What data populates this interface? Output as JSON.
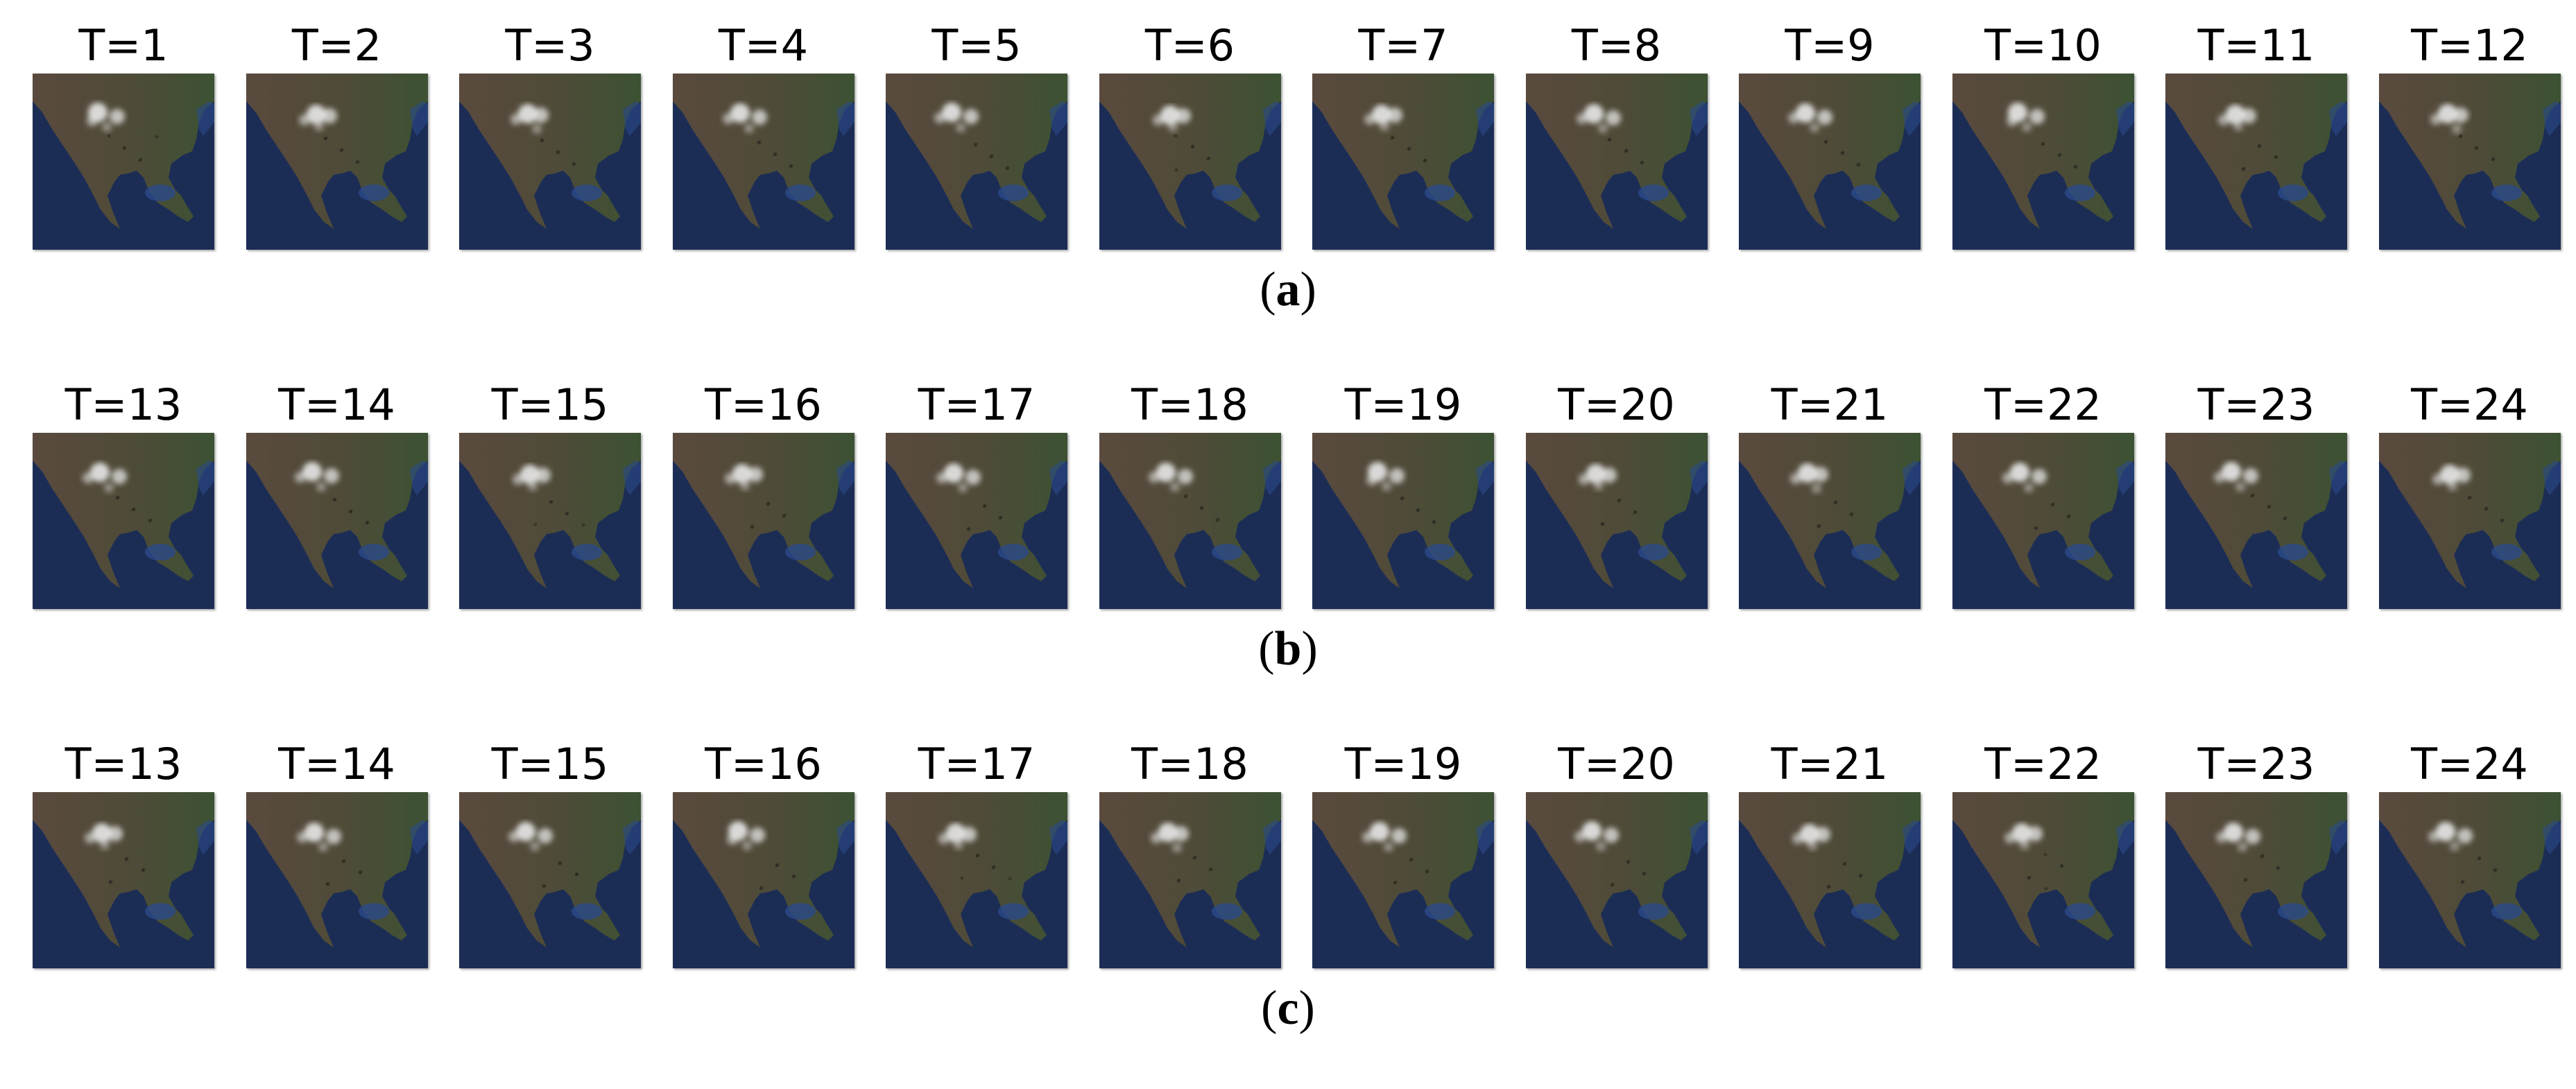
{
  "panels": [
    {
      "id": "a",
      "caption_open": "(",
      "caption_letter": "a",
      "caption_close": ")",
      "frames": [
        "T=1",
        "T=2",
        "T=3",
        "T=4",
        "T=5",
        "T=6",
        "T=7",
        "T=8",
        "T=9",
        "T=10",
        "T=11",
        "T=12"
      ]
    },
    {
      "id": "b",
      "caption_open": "(",
      "caption_letter": "b",
      "caption_close": ")",
      "frames": [
        "T=13",
        "T=14",
        "T=15",
        "T=16",
        "T=17",
        "T=18",
        "T=19",
        "T=20",
        "T=21",
        "T=22",
        "T=23",
        "T=24"
      ]
    },
    {
      "id": "c",
      "caption_open": "(",
      "caption_letter": "c",
      "caption_close": ")",
      "frames": [
        "T=13",
        "T=14",
        "T=15",
        "T=16",
        "T=17",
        "T=18",
        "T=19",
        "T=20",
        "T=21",
        "T=22",
        "T=23",
        "T=24"
      ]
    }
  ],
  "colors": {
    "ocean": "#1c2d55",
    "land_west": "#5a4a3e",
    "land_east": "#3c5233",
    "gulf": "#2a4a8a",
    "cloud": "#e8e8e8"
  },
  "image_subject": "satellite-map-north-america"
}
